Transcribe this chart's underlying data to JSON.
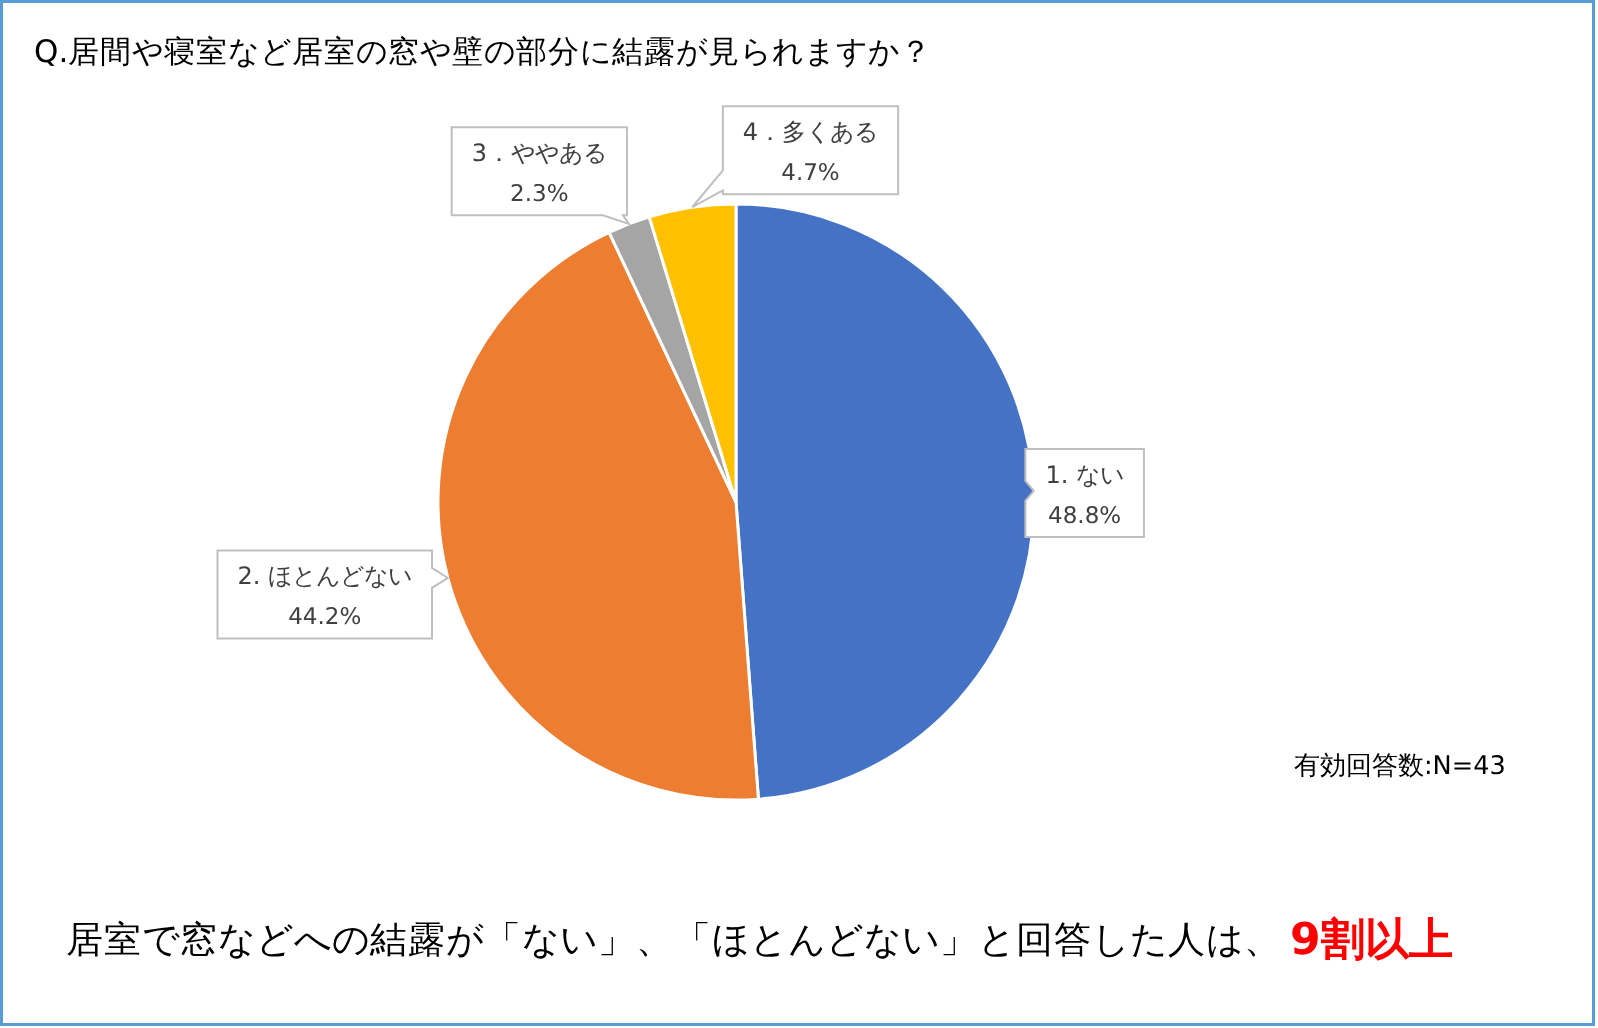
{
  "chart_data": {
    "type": "pie",
    "title": "Q.居間や寝室など居室の窓や壁の部分に結露が見られますか？",
    "categories": [
      "1. ない",
      "2. ほとんどない",
      "3．ややある",
      "4．多くある"
    ],
    "values": [
      48.8,
      44.2,
      2.3,
      4.7
    ],
    "colors": [
      "#4472c4",
      "#ed7d31",
      "#a5a5a5",
      "#ffc000"
    ],
    "value_labels": [
      "48.8%",
      "44.2%",
      "2.3%",
      "4.7%"
    ],
    "annotations": [
      "有効回答数:N=43",
      "居室で窓などへの結露が「ない」、「ほとんどない」と回答した人は、",
      "9割以上"
    ]
  }
}
